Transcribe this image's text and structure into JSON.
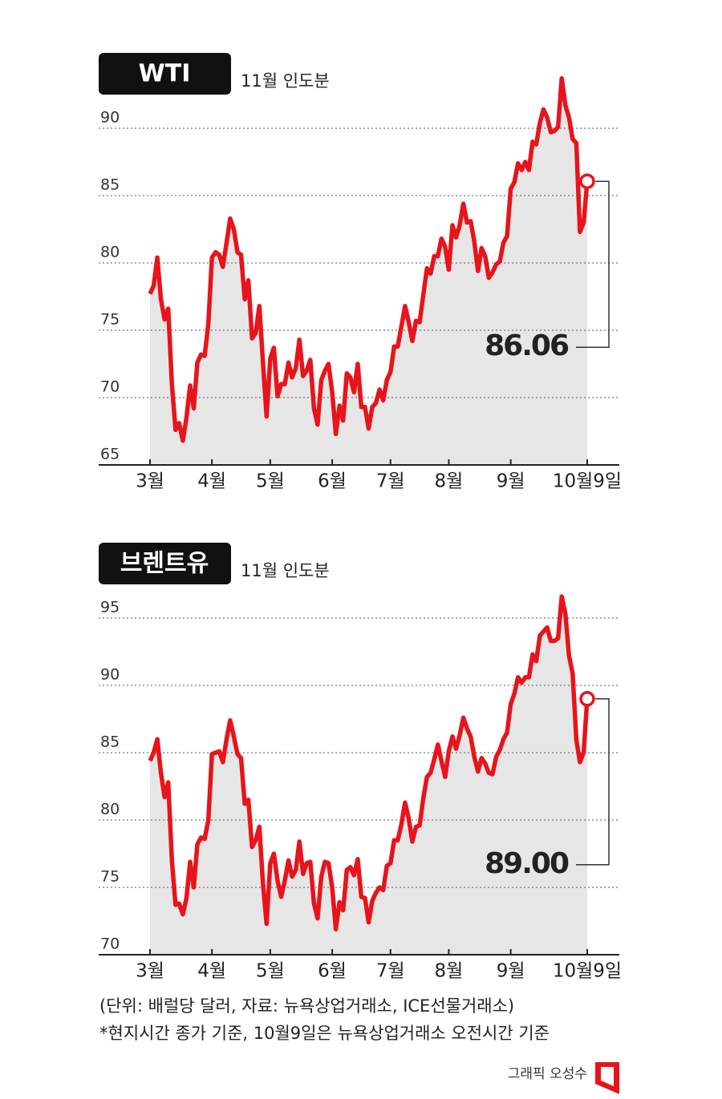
{
  "chart_data": [
    {
      "type": "line",
      "title": "WTI",
      "subtitle": "11월 인도분",
      "series": [
        {
          "color": "#e8141b",
          "values": [
            77.7,
            78.3,
            80.4,
            77.3,
            75.8,
            76.6,
            71,
            67.6,
            68.1,
            66.8,
            68.5,
            70.9,
            69.2,
            72.6,
            73.2,
            73.1,
            75.5,
            80.4,
            80.8,
            80.6,
            79.7,
            81.5,
            83.3,
            82.5,
            80.8,
            80.6,
            77.3,
            78.7,
            74.4,
            74.8,
            76.8,
            72.6,
            68.6,
            72.9,
            73.7,
            70.1,
            71,
            71,
            72.6,
            71.5,
            72.2,
            74.3,
            71.6,
            72,
            72.8,
            69.2,
            68,
            71.3,
            72,
            72.5,
            70.4,
            67.3,
            69.4,
            68.3,
            71.8,
            71.5,
            70.4,
            72.5,
            69.3,
            69.3,
            67.7,
            69.3,
            69.6,
            70.6,
            69.8,
            71.3,
            71.9,
            73.8,
            73.8,
            75.3,
            76.8,
            75.6,
            74.2,
            75.7,
            75.6,
            77.6,
            79.6,
            79.2,
            80.5,
            80.5,
            81.8,
            81.2,
            79.5,
            82.8,
            81.9,
            82.8,
            84.4,
            83,
            83.1,
            81.6,
            79.4,
            81.1,
            80.5,
            78.9,
            79.3,
            79.9,
            80.1,
            81.5,
            82,
            85.5,
            86,
            87.4,
            86.9,
            87.5,
            86.9,
            89,
            88.8,
            90.4,
            91.4,
            90.8,
            89.7,
            89.8,
            90.1,
            93.7,
            91.7,
            90.8,
            89.2,
            88.9,
            82.3,
            83,
            86.06
          ]
        }
      ],
      "annotations": [
        {
          "text": "86.06"
        }
      ],
      "xlim": [
        0,
        120
      ],
      "xticks": [
        {
          "value": 0,
          "label": "3월"
        },
        {
          "value": 17,
          "label": "4월"
        },
        {
          "value": 33,
          "label": "5월"
        },
        {
          "value": 50,
          "label": "6월"
        },
        {
          "value": 66,
          "label": "7월"
        },
        {
          "value": 82,
          "label": "8월"
        },
        {
          "value": 99,
          "label": "9월"
        },
        {
          "value": 120,
          "label": "10월9일"
        }
      ],
      "ylim": [
        65,
        95
      ],
      "yticks": [
        65,
        70,
        75,
        80,
        85,
        90
      ],
      "grid": true
    },
    {
      "type": "line",
      "title": "브렌트유",
      "subtitle": "11월 인도분",
      "series": [
        {
          "color": "#e8141b",
          "values": [
            84.4,
            85,
            86,
            83.5,
            81.7,
            82.8,
            77,
            73.7,
            73.8,
            73,
            74.2,
            76.9,
            75,
            78.2,
            78.7,
            78.6,
            80,
            84.9,
            85,
            85.1,
            84.3,
            86,
            87.4,
            86.2,
            84.9,
            84.6,
            81.2,
            81.5,
            78,
            78.5,
            79.5,
            75.3,
            72.3,
            76.8,
            77.5,
            75.5,
            74.3,
            75.5,
            77,
            75.8,
            76.3,
            78.4,
            76,
            76.8,
            76.9,
            73.8,
            72.7,
            75.8,
            76.9,
            76.8,
            75,
            71.9,
            73.9,
            73.3,
            76.3,
            76.5,
            75.9,
            77.1,
            74.3,
            74.2,
            72.4,
            74,
            74.6,
            75,
            74.8,
            76.6,
            76.8,
            78.5,
            78.5,
            79.7,
            81.3,
            80.1,
            78.4,
            79.5,
            79.6,
            81.6,
            83.2,
            83.5,
            84.5,
            85.6,
            84.4,
            83.2,
            85.1,
            86.2,
            85.3,
            86.3,
            87.6,
            86.8,
            86.2,
            84.7,
            83.6,
            84.6,
            84.2,
            83.5,
            83.4,
            84.7,
            85.2,
            86,
            86.5,
            88.6,
            89.4,
            90.6,
            90.2,
            90.6,
            90.6,
            92.3,
            91.8,
            93.7,
            94,
            94.3,
            93.3,
            93.3,
            93.5,
            96.6,
            95.3,
            92.2,
            90.9,
            86,
            84.3,
            85,
            89
          ]
        }
      ],
      "annotations": [
        {
          "text": "89.00"
        }
      ],
      "xlim": [
        0,
        120
      ],
      "xticks": [
        {
          "value": 0,
          "label": "3월"
        },
        {
          "value": 17,
          "label": "4월"
        },
        {
          "value": 33,
          "label": "5월"
        },
        {
          "value": 50,
          "label": "6월"
        },
        {
          "value": 66,
          "label": "7월"
        },
        {
          "value": 82,
          "label": "8월"
        },
        {
          "value": 99,
          "label": "9월"
        },
        {
          "value": 120,
          "label": "10월9일"
        }
      ],
      "ylim": [
        70,
        100
      ],
      "yticks": [
        70,
        75,
        80,
        85,
        90,
        95
      ],
      "grid": true
    }
  ],
  "notes": [
    "(단위: 배럴당 달러, 자료: 뉴욕상업거래소, ICE선물거래소)",
    "*현지시간 종가 기준, 10월9일은 뉴욕상업거래소 오전시간 기준"
  ],
  "credit": "그래픽 오성수"
}
